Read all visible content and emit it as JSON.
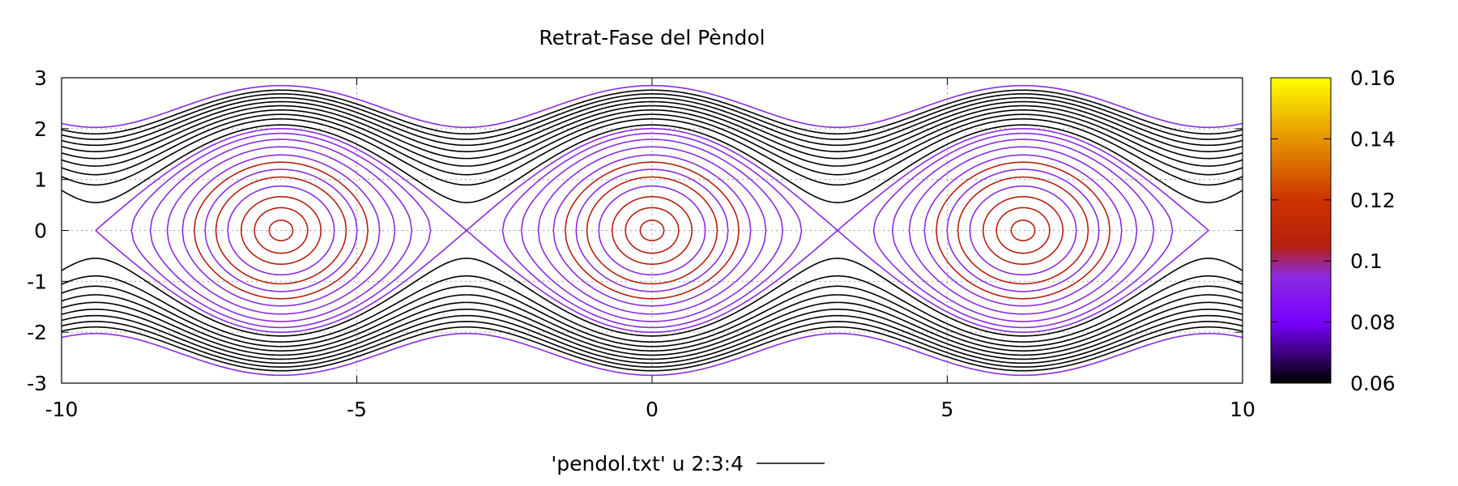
{
  "chart_data": {
    "type": "line",
    "title": "Retrat-Fase del Pèndol",
    "xlim": [
      -10,
      10
    ],
    "ylim": [
      -3,
      3
    ],
    "x_ticks": [
      "-10",
      "-5",
      "0",
      "5",
      "10"
    ],
    "y_ticks": [
      "-3",
      "-2",
      "-1",
      "0",
      "1",
      "2",
      "3"
    ],
    "grid": true,
    "legend": {
      "label": "'pendol.txt' u 2:3:4",
      "position": "bottom-center"
    },
    "colorbar": {
      "range": [
        0.06,
        0.16
      ],
      "ticks": [
        "0.06",
        "0.08",
        "0.1",
        "0.12",
        "0.14",
        "0.16"
      ],
      "colormap": [
        {
          "value": 0.06,
          "color": "#000000"
        },
        {
          "value": 0.08,
          "color": "#7a00ff"
        },
        {
          "value": 0.095,
          "color": "#8a2be2"
        },
        {
          "value": 0.105,
          "color": "#b8200f"
        },
        {
          "value": 0.12,
          "color": "#cc3300"
        },
        {
          "value": 0.14,
          "color": "#e69500"
        },
        {
          "value": 0.16,
          "color": "#ffff00"
        }
      ]
    },
    "pendulum_centers": [
      -6.283,
      0,
      6.283
    ],
    "closed_orbits_energy": [
      0.02,
      0.1,
      0.22,
      0.38,
      0.55,
      0.72,
      0.9,
      1.1,
      1.35,
      1.6,
      1.82,
      2.0
    ],
    "open_orbits_energy": [
      2.15,
      2.4,
      2.6,
      2.8,
      3.0,
      3.2,
      3.4,
      3.6,
      3.8,
      4.05
    ]
  }
}
